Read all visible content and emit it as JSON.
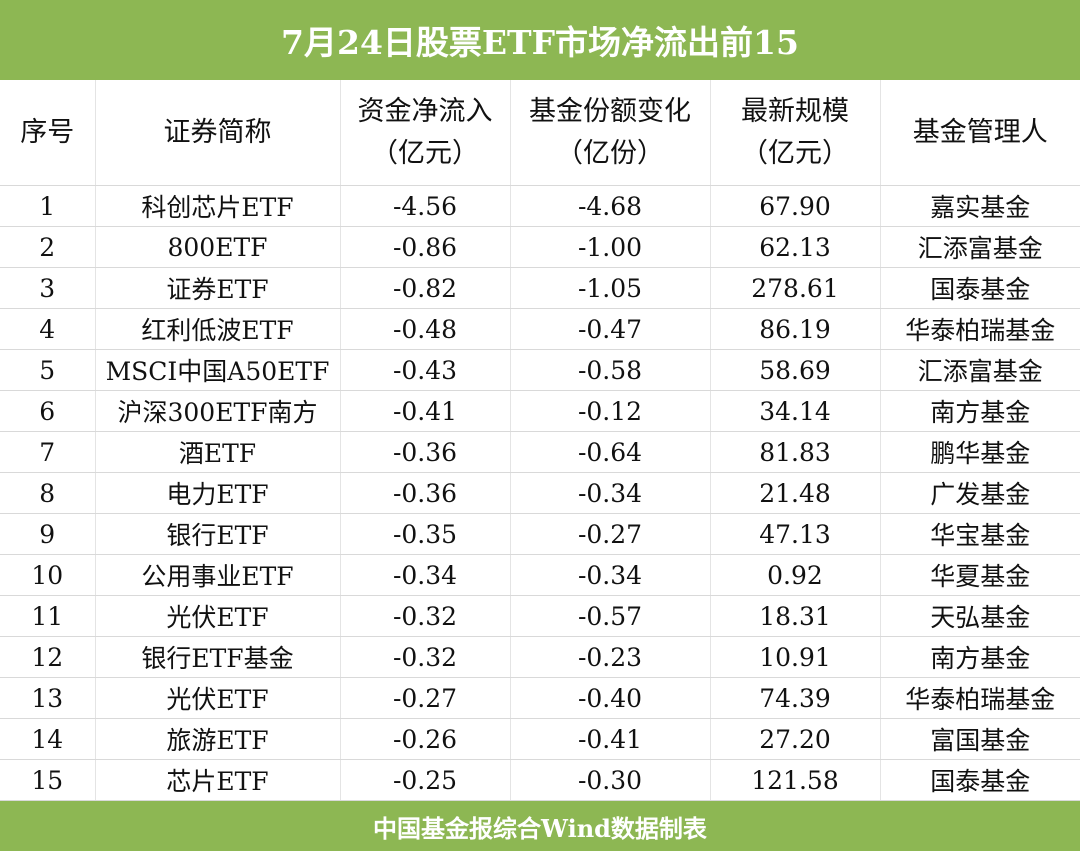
{
  "title": "7月24日股票ETF市场净流出前15",
  "footer": "中国基金报综合Wind数据制表",
  "colors": {
    "header_bar": "#8db753",
    "header_text": "#ffffff"
  },
  "chart_data": {
    "type": "table",
    "columns": [
      {
        "line1": "序号",
        "line2": ""
      },
      {
        "line1": "证券简称",
        "line2": ""
      },
      {
        "line1": "资金净流入",
        "line2": "（亿元）"
      },
      {
        "line1": "基金份额变化",
        "line2": "（亿份）"
      },
      {
        "line1": "最新规模",
        "line2": "（亿元）"
      },
      {
        "line1": "基金管理人",
        "line2": ""
      }
    ],
    "rows": [
      [
        "1",
        "科创芯片ETF",
        "-4.56",
        "-4.68",
        "67.90",
        "嘉实基金"
      ],
      [
        "2",
        "800ETF",
        "-0.86",
        "-1.00",
        "62.13",
        "汇添富基金"
      ],
      [
        "3",
        "证券ETF",
        "-0.82",
        "-1.05",
        "278.61",
        "国泰基金"
      ],
      [
        "4",
        "红利低波ETF",
        "-0.48",
        "-0.47",
        "86.19",
        "华泰柏瑞基金"
      ],
      [
        "5",
        "MSCI中国A50ETF",
        "-0.43",
        "-0.58",
        "58.69",
        "汇添富基金"
      ],
      [
        "6",
        "沪深300ETF南方",
        "-0.41",
        "-0.12",
        "34.14",
        "南方基金"
      ],
      [
        "7",
        "酒ETF",
        "-0.36",
        "-0.64",
        "81.83",
        "鹏华基金"
      ],
      [
        "8",
        "电力ETF",
        "-0.36",
        "-0.34",
        "21.48",
        "广发基金"
      ],
      [
        "9",
        "银行ETF",
        "-0.35",
        "-0.27",
        "47.13",
        "华宝基金"
      ],
      [
        "10",
        "公用事业ETF",
        "-0.34",
        "-0.34",
        "0.92",
        "华夏基金"
      ],
      [
        "11",
        "光伏ETF",
        "-0.32",
        "-0.57",
        "18.31",
        "天弘基金"
      ],
      [
        "12",
        "银行ETF基金",
        "-0.32",
        "-0.23",
        "10.91",
        "南方基金"
      ],
      [
        "13",
        "光伏ETF",
        "-0.27",
        "-0.40",
        "74.39",
        "华泰柏瑞基金"
      ],
      [
        "14",
        "旅游ETF",
        "-0.26",
        "-0.41",
        "27.20",
        "富国基金"
      ],
      [
        "15",
        "芯片ETF",
        "-0.25",
        "-0.30",
        "121.58",
        "国泰基金"
      ]
    ]
  }
}
